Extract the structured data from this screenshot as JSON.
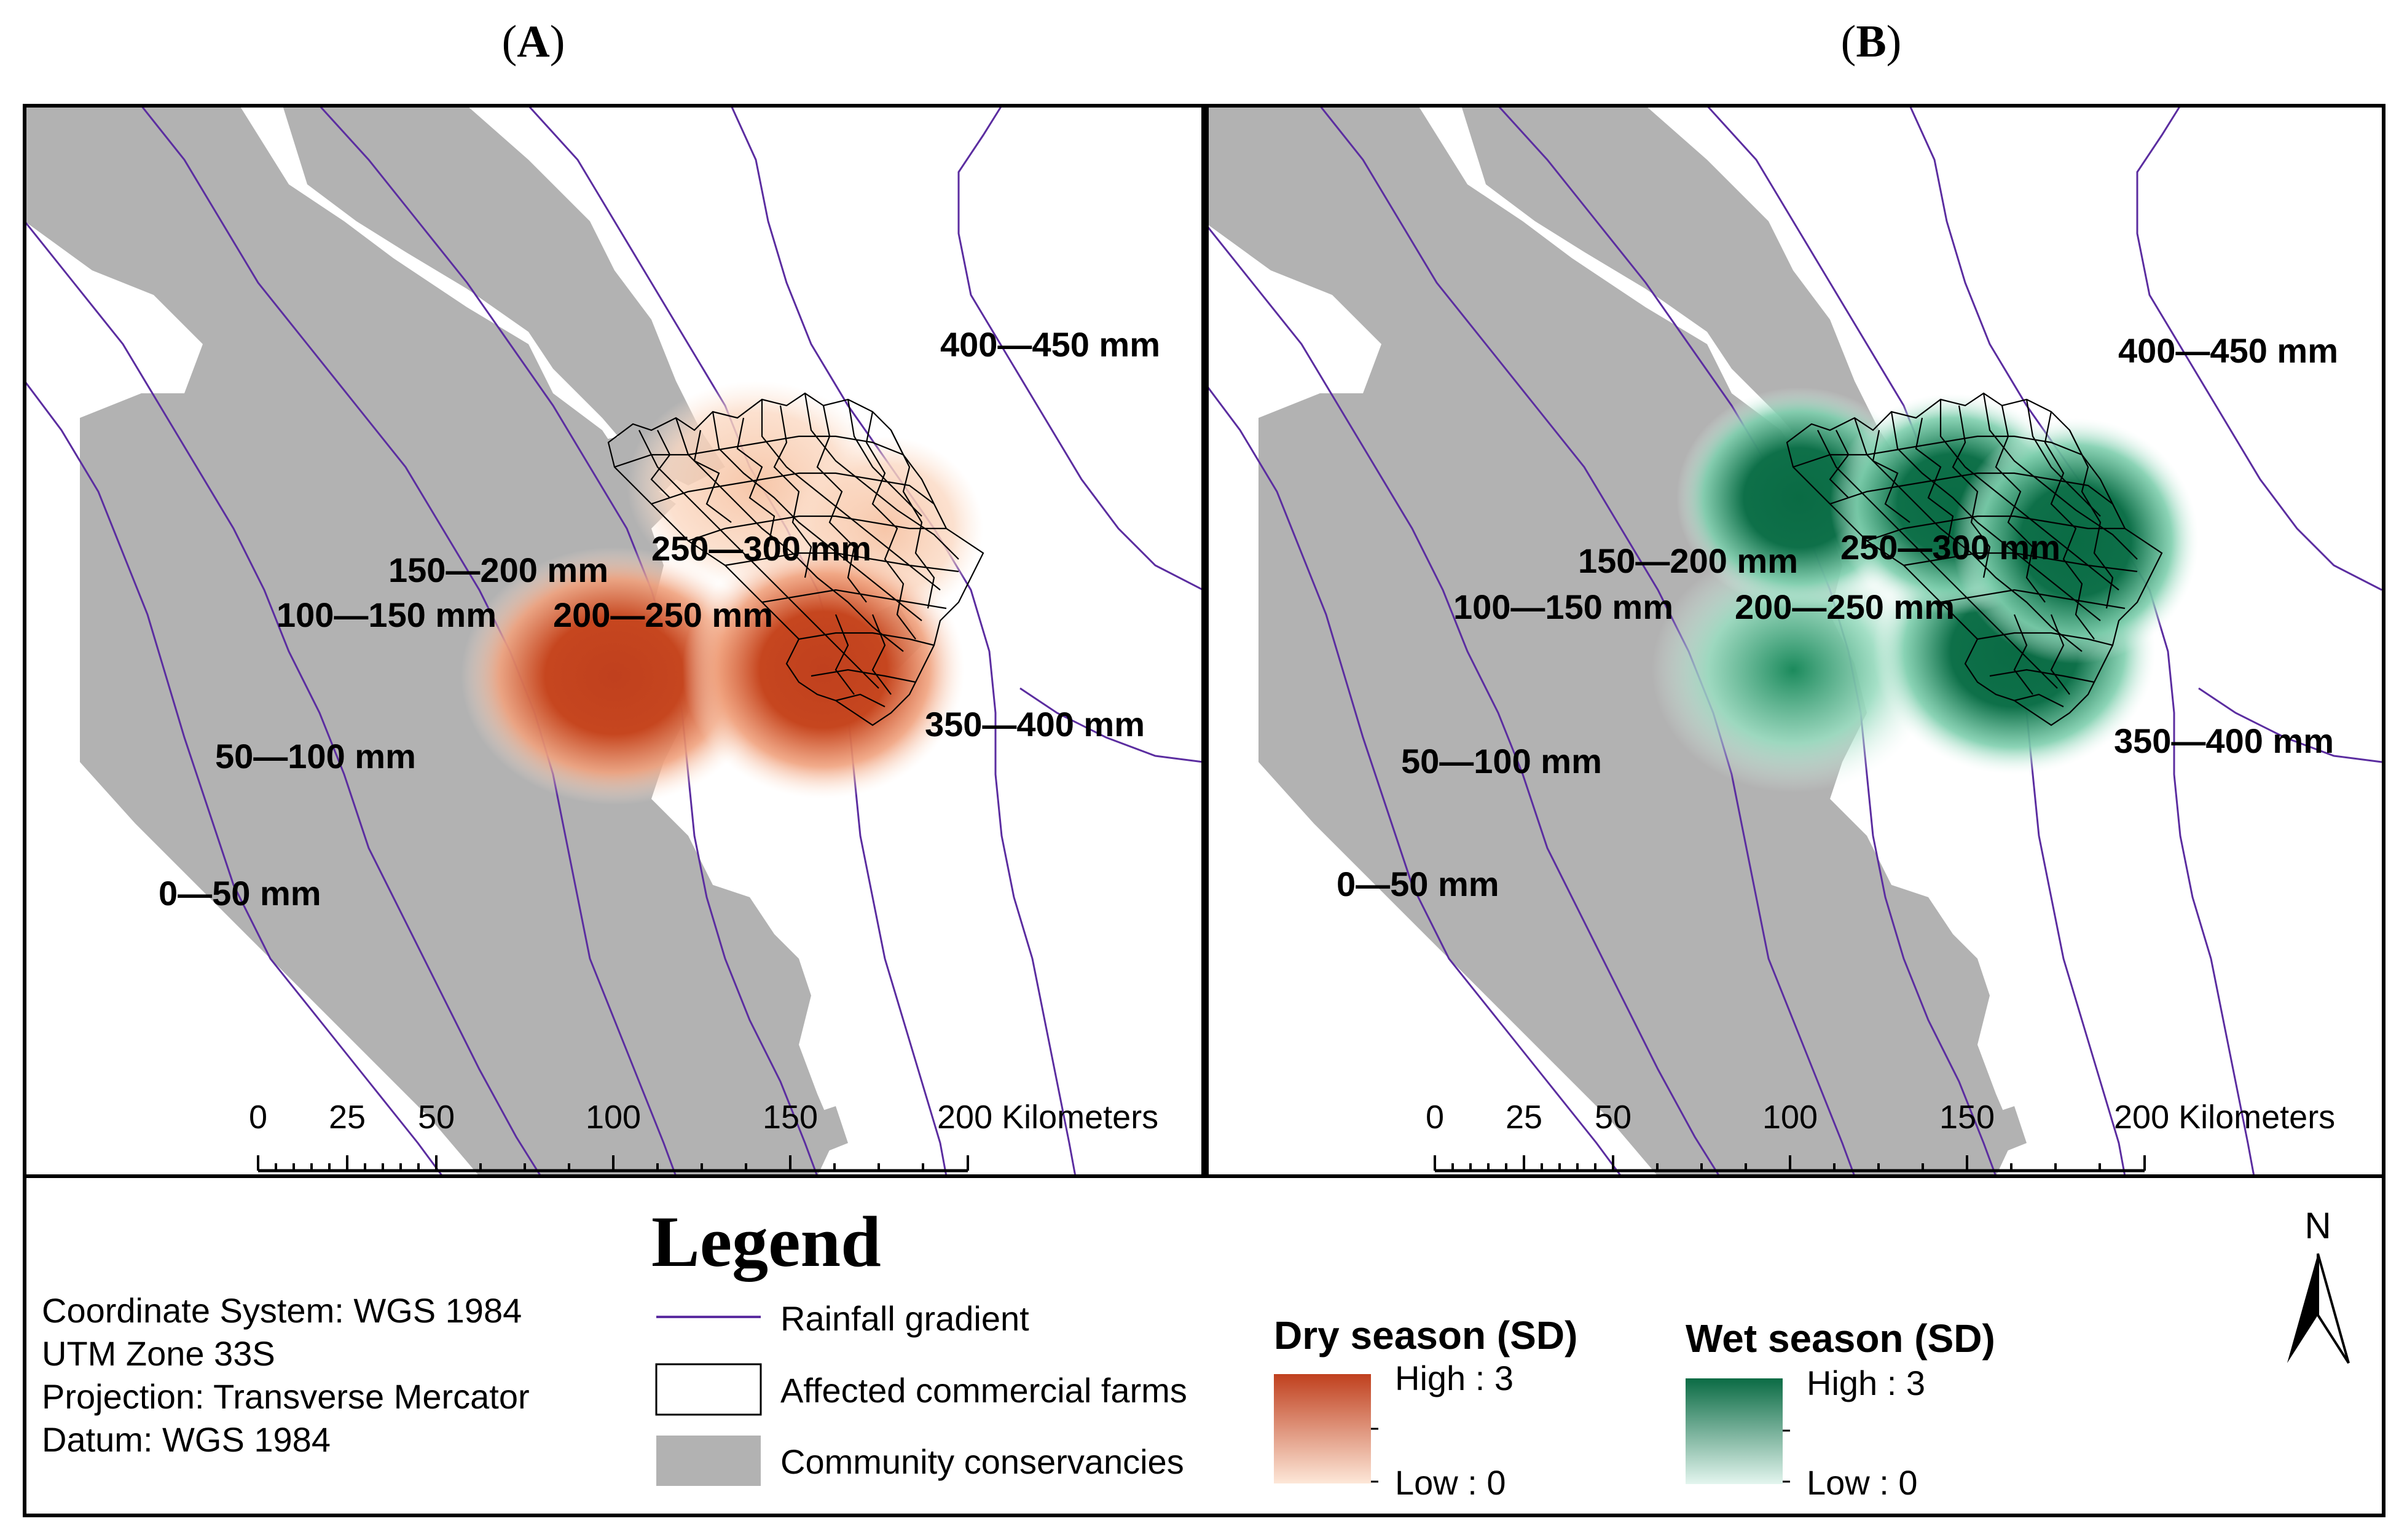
{
  "panels": [
    {
      "id": "A",
      "title": "A",
      "rainfall_labels": [
        "400—450 mm",
        "250—300 mm",
        "150—200 mm",
        "100—150 mm",
        "200—250 mm",
        "350—400 mm",
        "50—100 mm",
        "0—50 mm"
      ],
      "scale_labels": [
        "0",
        "25",
        "50",
        "100",
        "150",
        "200 Kilometers"
      ]
    },
    {
      "id": "B",
      "title": "B",
      "rainfall_labels": [
        "400—450 mm",
        "150—200 mm",
        "250—300 mm",
        "100—150 mm",
        "200—250 mm",
        "350—400 mm",
        "50—100 mm",
        "0—50 mm"
      ],
      "scale_labels": [
        "0",
        "25",
        "50",
        "100",
        "150",
        "200 Kilometers"
      ]
    }
  ],
  "legend": {
    "title": "Legend",
    "coordinate_info": [
      "Coordinate System: WGS 1984",
      "UTM Zone 33S",
      "Projection: Transverse Mercator",
      "Datum: WGS 1984"
    ],
    "items": [
      "Rainfall gradient",
      "Affected commercial farms",
      "Community conservancies"
    ],
    "dry": {
      "title": "Dry season (SD)",
      "high": "High : 3",
      "low": "Low : 0"
    },
    "wet": {
      "title": "Wet season (SD)",
      "high": "High : 3",
      "low": "Low : 0"
    },
    "north": "N"
  },
  "colors": {
    "conservancy": "#b2b2b2",
    "rainfall_line": "#5b2da0",
    "dry_high": "#c0401e",
    "dry_low": "#fde7d8",
    "wet_high": "#0a6b44",
    "wet_low": "#e3f5ee"
  }
}
